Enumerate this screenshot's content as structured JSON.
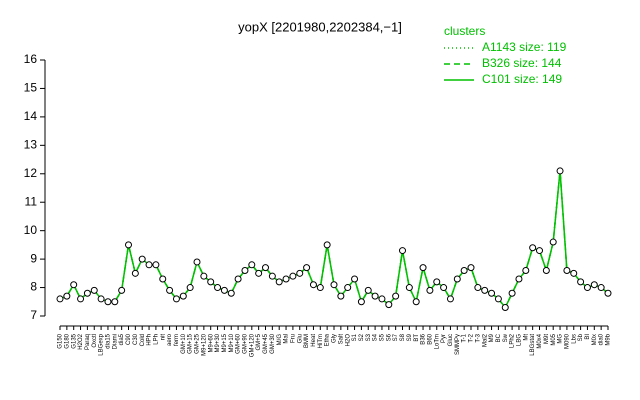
{
  "chart_data": {
    "type": "line",
    "title": "yopX [2201980,2202384,−1]",
    "categories": [
      "G150",
      "G180",
      "G135",
      "H2O2",
      "Paraq",
      "Oxctl",
      "LBGexp",
      "dia15",
      "Diami",
      "dia5",
      "C90",
      "C30",
      "Cold",
      "HPh",
      "LPh",
      "nit",
      "aero",
      "ferm",
      "GM+10",
      "GM+15",
      "GM+25",
      "M9+120",
      "M9+60",
      "M9+30",
      "M9+15",
      "M9+10",
      "GM+60",
      "GM+90",
      "GM+120",
      "GM+5",
      "GM+45",
      "GM+30",
      "M/G",
      "Mal",
      "Fru",
      "Glu",
      "BMM",
      "Heat",
      "HiTm",
      "Etha",
      "Gly",
      "Salt",
      "H2O",
      "S1",
      "S2",
      "S3",
      "S4",
      "S5",
      "S6",
      "S7",
      "S8",
      "S9",
      "BT",
      "B36",
      "B60",
      "LoTm",
      "Pyr",
      "Gluc",
      "SMMPy",
      "T-1",
      "T-2",
      "T-3",
      "Mal2",
      "M9",
      "BC",
      "Sw",
      "LPh2",
      "LBG",
      "Mt",
      "LBGstat",
      "M0x4",
      "M9t",
      "M05",
      "MG",
      "M090",
      "Lbs",
      "Sb",
      "BI",
      "M0x",
      "dia0",
      "M9b"
    ],
    "series": [
      {
        "name": "A1143 size: 119",
        "color": "#00c000",
        "dash": "1,3",
        "values": [
          7.6,
          7.7,
          8.1,
          7.6,
          7.8,
          7.9,
          7.6,
          7.5,
          7.5,
          7.9,
          9.5,
          8.5,
          9.0,
          8.8,
          8.8,
          8.3,
          7.9,
          7.6,
          7.7,
          8.0,
          8.9,
          8.4,
          8.2,
          8.0,
          7.9,
          7.8,
          8.3,
          8.6,
          8.8,
          8.5,
          8.7,
          8.4,
          8.2,
          8.3,
          8.4,
          8.5,
          8.7,
          8.1,
          8.0,
          9.5,
          8.1,
          7.7,
          8.0,
          8.3,
          7.5,
          7.9,
          7.7,
          7.6,
          7.4,
          7.7,
          9.3,
          8.0,
          7.5,
          8.7,
          7.9,
          8.2,
          8.0,
          7.6,
          8.3,
          8.6,
          8.7,
          8.0,
          7.9,
          7.8,
          7.6,
          7.3,
          7.8,
          8.3,
          8.6,
          9.4,
          9.3,
          8.6,
          9.6,
          12.1,
          8.6,
          8.5,
          8.2,
          8.0,
          8.1,
          8.0,
          7.8
        ]
      },
      {
        "name": "B326 size: 144",
        "color": "#00c000",
        "dash": "6,4",
        "values": [
          7.6,
          7.7,
          8.1,
          7.6,
          7.8,
          7.9,
          7.6,
          7.5,
          7.5,
          7.9,
          9.5,
          8.5,
          9.0,
          8.8,
          8.8,
          8.3,
          7.9,
          7.6,
          7.7,
          8.0,
          8.9,
          8.4,
          8.2,
          8.0,
          7.9,
          7.8,
          8.3,
          8.6,
          8.8,
          8.5,
          8.7,
          8.4,
          8.2,
          8.3,
          8.4,
          8.5,
          8.7,
          8.1,
          8.0,
          9.5,
          8.1,
          7.7,
          8.0,
          8.3,
          7.5,
          7.9,
          7.7,
          7.6,
          7.4,
          7.7,
          9.3,
          8.0,
          7.5,
          8.7,
          7.9,
          8.2,
          8.0,
          7.6,
          8.3,
          8.6,
          8.7,
          8.0,
          7.9,
          7.8,
          7.6,
          7.3,
          7.8,
          8.3,
          8.6,
          9.4,
          9.3,
          8.6,
          9.6,
          12.1,
          8.6,
          8.5,
          8.2,
          8.0,
          8.1,
          8.0,
          7.8
        ]
      },
      {
        "name": "C101 size: 149",
        "color": "#00c000",
        "dash": "none",
        "values": [
          7.6,
          7.7,
          8.1,
          7.6,
          7.8,
          7.9,
          7.6,
          7.5,
          7.5,
          7.9,
          9.5,
          8.5,
          9.0,
          8.8,
          8.8,
          8.3,
          7.9,
          7.6,
          7.7,
          8.0,
          8.9,
          8.4,
          8.2,
          8.0,
          7.9,
          7.8,
          8.3,
          8.6,
          8.8,
          8.5,
          8.7,
          8.4,
          8.2,
          8.3,
          8.4,
          8.5,
          8.7,
          8.1,
          8.0,
          9.5,
          8.1,
          7.7,
          8.0,
          8.3,
          7.5,
          7.9,
          7.7,
          7.6,
          7.4,
          7.7,
          9.3,
          8.0,
          7.5,
          8.7,
          7.9,
          8.2,
          8.0,
          7.6,
          8.3,
          8.6,
          8.7,
          8.0,
          7.9,
          7.8,
          7.6,
          7.3,
          7.8,
          8.3,
          8.6,
          9.4,
          9.3,
          8.6,
          9.6,
          12.1,
          8.6,
          8.5,
          8.2,
          8.0,
          8.1,
          8.0,
          7.8
        ]
      }
    ],
    "legend_title": "clusters",
    "ylim": [
      7,
      16
    ],
    "yticks": [
      7,
      8,
      9,
      10,
      11,
      12,
      13,
      14,
      15,
      16
    ]
  }
}
